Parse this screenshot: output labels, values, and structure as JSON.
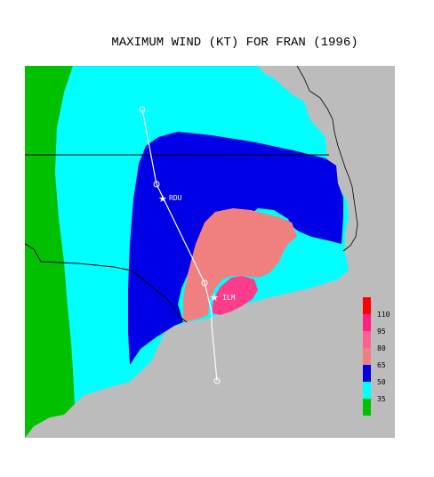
{
  "title": "MAXIMUM WIND (KT) FOR FRAN (1996)",
  "colors": {
    "ocean": "#bcbcbc",
    "wind_35": "#00ffff",
    "wind_50": "#0000e6",
    "wind_65": "#f08080",
    "wind_80": "#ff3c8c",
    "land_outside": "#00c000",
    "track": "#ffffff",
    "border_lines": "#000000"
  },
  "cities": [
    {
      "id": "rdu",
      "label": "RDU"
    },
    {
      "id": "ilm",
      "label": "ILM"
    }
  ],
  "legend": {
    "entries": [
      {
        "label": "110",
        "color": "#ff0000"
      },
      {
        "label": "95",
        "color": "#ff2080"
      },
      {
        "label": "80",
        "color": "#ff6090"
      },
      {
        "label": "65",
        "color": "#f08080"
      },
      {
        "label": "50",
        "color": "#0000e6"
      },
      {
        "label": "35",
        "color": "#00ffff"
      },
      {
        "label": "",
        "color": "#00c000"
      }
    ]
  }
}
